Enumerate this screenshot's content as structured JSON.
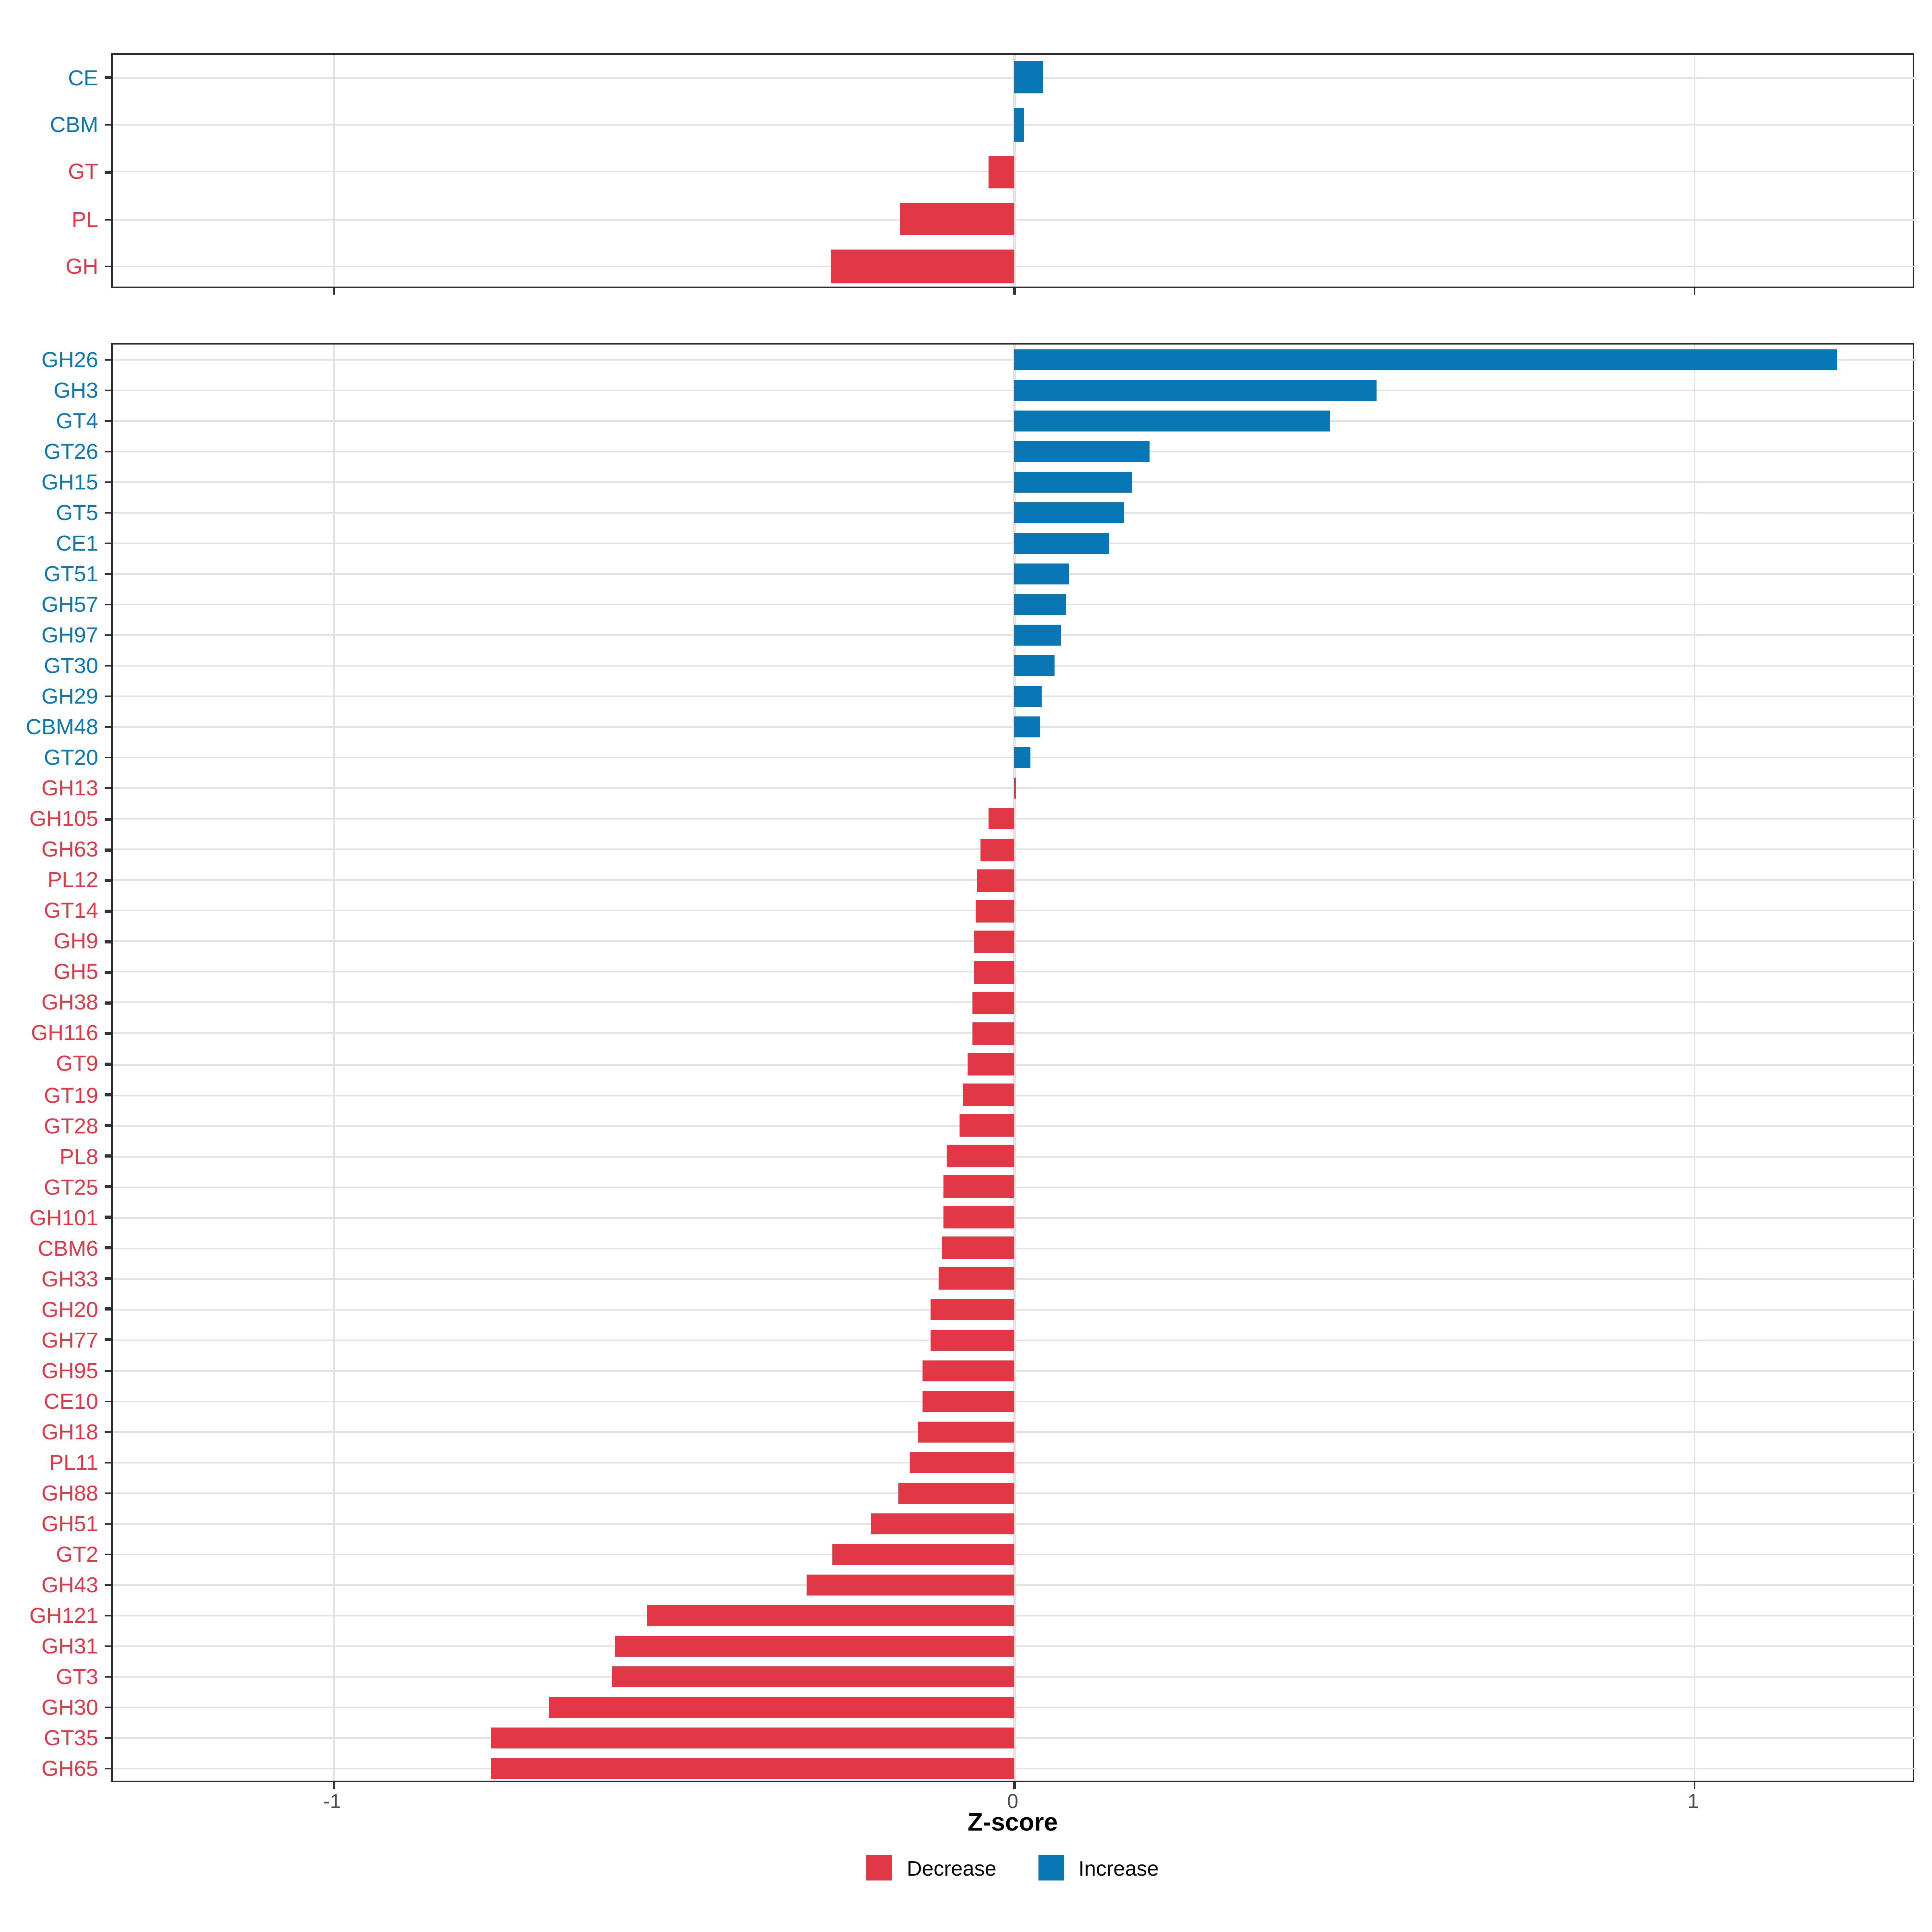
{
  "colors": {
    "increase": "#0877B4",
    "decrease": "#E23747",
    "grid": "#E3E3E3",
    "axis_text": "#4D4D4D",
    "panel_border": "#2B2B2B",
    "tick_mark": "#333333",
    "background": "#FFFFFF"
  },
  "x_axis": {
    "title": "Z-score",
    "domain": [
      -1.325,
      1.325
    ],
    "ticks": [
      {
        "value": -1,
        "label": "-1"
      },
      {
        "value": 0,
        "label": "0"
      },
      {
        "value": 1,
        "label": "1"
      }
    ]
  },
  "legend": {
    "items": [
      {
        "label": "Decrease",
        "color_key": "decrease"
      },
      {
        "label": "Increase",
        "color_key": "increase"
      }
    ]
  },
  "chart_data": [
    {
      "type": "bar",
      "orientation": "horizontal",
      "panel": "top",
      "title": "",
      "xlabel": "Z-score",
      "ylabel": "",
      "xlim": [
        -1.325,
        1.325
      ],
      "grid": "on",
      "legend_position": "bottom",
      "categories": [
        "CE",
        "CBM",
        "GT",
        "PL",
        "GH"
      ],
      "values": [
        0.042,
        0.015,
        -0.038,
        -0.169,
        -0.269
      ],
      "directions": [
        "increase",
        "increase",
        "decrease",
        "decrease",
        "decrease"
      ]
    },
    {
      "type": "bar",
      "orientation": "horizontal",
      "panel": "bottom",
      "title": "",
      "xlabel": "Z-score",
      "ylabel": "",
      "xlim": [
        -1.325,
        1.325
      ],
      "grid": "on",
      "legend_position": "bottom",
      "categories": [
        "GH26",
        "GH3",
        "GT4",
        "GT26",
        "GH15",
        "GT5",
        "CE1",
        "GT51",
        "GH57",
        "GH97",
        "GT30",
        "GH29",
        "CBM48",
        "GT20",
        "GH13",
        "GH105",
        "GH63",
        "PL12",
        "GT14",
        "GH9",
        "GH5",
        "GH38",
        "GH116",
        "GT9",
        "GT19",
        "GT28",
        "PL8",
        "GT25",
        "GH101",
        "CBM6",
        "GH33",
        "GH20",
        "GH77",
        "GH95",
        "CE10",
        "GH18",
        "PL11",
        "GH88",
        "GH51",
        "GT2",
        "GH43",
        "GH121",
        "GH31",
        "GT3",
        "GH30",
        "GT35",
        "GH65"
      ],
      "values": [
        1.208,
        0.533,
        0.464,
        0.198,
        0.173,
        0.16,
        0.14,
        0.08,
        0.076,
        0.069,
        0.06,
        0.041,
        0.038,
        0.024,
        -0.001,
        -0.037,
        -0.05,
        -0.055,
        -0.057,
        -0.058,
        -0.06,
        -0.061,
        -0.062,
        -0.068,
        -0.076,
        -0.081,
        -0.1,
        -0.103,
        -0.104,
        -0.106,
        -0.111,
        -0.123,
        -0.124,
        -0.135,
        -0.136,
        -0.143,
        -0.153,
        -0.17,
        -0.21,
        -0.268,
        -0.306,
        -0.539,
        -0.586,
        -0.592,
        -0.684,
        -0.77,
        -0.77
      ],
      "directions": [
        "increase",
        "increase",
        "increase",
        "increase",
        "increase",
        "increase",
        "increase",
        "increase",
        "increase",
        "increase",
        "increase",
        "increase",
        "increase",
        "increase",
        "decrease",
        "decrease",
        "decrease",
        "decrease",
        "decrease",
        "decrease",
        "decrease",
        "decrease",
        "decrease",
        "decrease",
        "decrease",
        "decrease",
        "decrease",
        "decrease",
        "decrease",
        "decrease",
        "decrease",
        "decrease",
        "decrease",
        "decrease",
        "decrease",
        "decrease",
        "decrease",
        "decrease",
        "decrease",
        "decrease",
        "decrease",
        "decrease",
        "decrease",
        "decrease",
        "decrease",
        "decrease",
        "decrease"
      ]
    }
  ]
}
